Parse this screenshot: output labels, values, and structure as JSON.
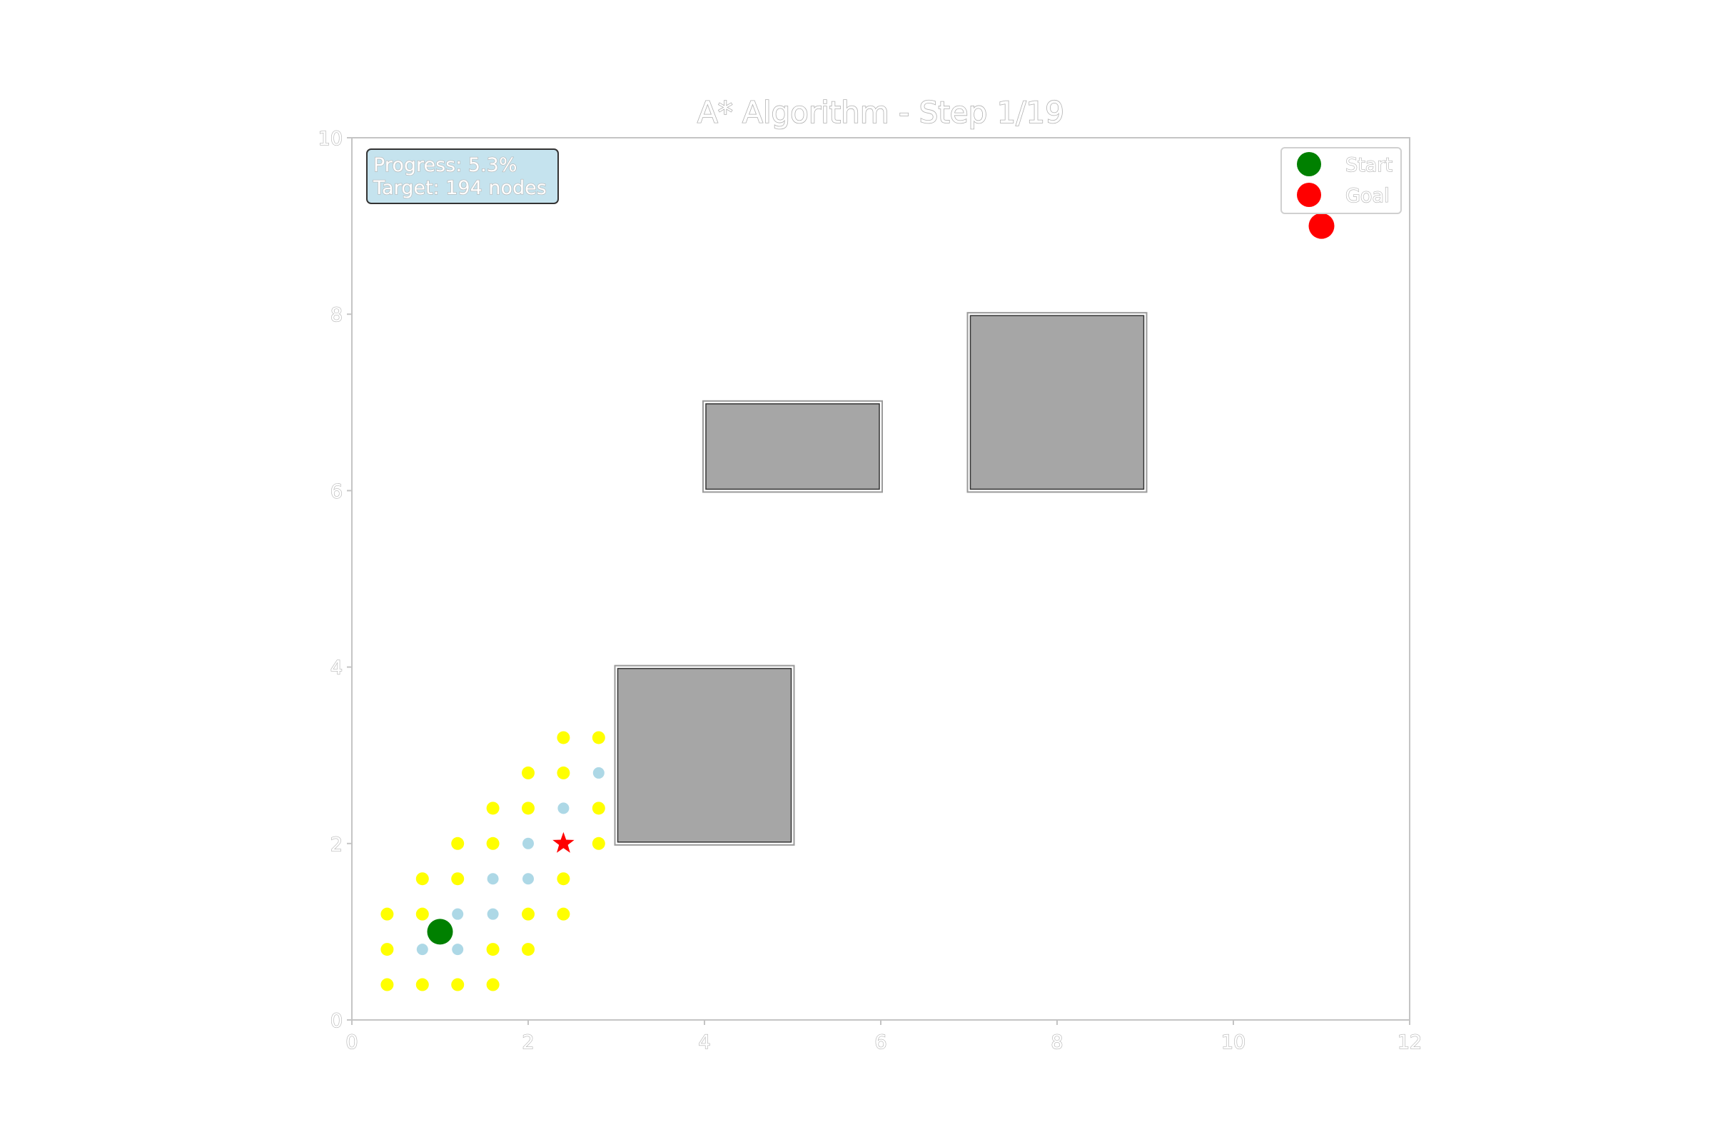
{
  "chart_data": {
    "type": "scatter",
    "title": "A* Algorithm - Step 1/19",
    "xlabel": "",
    "ylabel": "",
    "xlim": [
      0,
      12
    ],
    "ylim": [
      0,
      10
    ],
    "xticks": [
      0,
      2,
      4,
      6,
      8,
      10,
      12
    ],
    "yticks": [
      0,
      2,
      4,
      6,
      8,
      10
    ],
    "grid": false,
    "info_box": {
      "lines": [
        "Progress: 5.3%",
        "Target: 194 nodes"
      ],
      "placement": "top-left",
      "background": "#c5e3ee"
    },
    "legend": {
      "placement": "top-right",
      "entries": [
        {
          "label": "Start",
          "color": "#008000"
        },
        {
          "label": "Goal",
          "color": "#ff0000"
        }
      ]
    },
    "obstacles": [
      {
        "x": 3,
        "y": 2,
        "width": 2,
        "height": 2
      },
      {
        "x": 4,
        "y": 6,
        "width": 2,
        "height": 1
      },
      {
        "x": 7,
        "y": 6,
        "width": 2,
        "height": 2
      }
    ],
    "start": {
      "x": 1.0,
      "y": 1.0,
      "color": "#008000"
    },
    "goal": {
      "x": 11.0,
      "y": 9.0,
      "color": "#ff0000"
    },
    "current": {
      "x": 2.4,
      "y": 2.0,
      "color": "#ff0000"
    },
    "open_set": {
      "color": "#ffff00",
      "points": [
        [
          0.4,
          0.4
        ],
        [
          0.8,
          0.4
        ],
        [
          1.2,
          0.4
        ],
        [
          1.6,
          0.4
        ],
        [
          0.4,
          0.8
        ],
        [
          1.6,
          0.8
        ],
        [
          2.0,
          0.8
        ],
        [
          0.4,
          1.2
        ],
        [
          0.8,
          1.2
        ],
        [
          2.0,
          1.2
        ],
        [
          2.4,
          1.2
        ],
        [
          0.8,
          1.6
        ],
        [
          1.2,
          1.6
        ],
        [
          2.4,
          1.6
        ],
        [
          1.2,
          2.0
        ],
        [
          1.6,
          2.0
        ],
        [
          2.8,
          2.0
        ],
        [
          1.6,
          2.4
        ],
        [
          2.0,
          2.4
        ],
        [
          2.8,
          2.4
        ],
        [
          2.0,
          2.8
        ],
        [
          2.4,
          2.8
        ],
        [
          2.4,
          3.2
        ],
        [
          2.8,
          3.2
        ]
      ]
    },
    "closed_set": {
      "color": "#add8e6",
      "points": [
        [
          0.8,
          0.8
        ],
        [
          1.2,
          0.8
        ],
        [
          1.2,
          1.2
        ],
        [
          1.6,
          1.2
        ],
        [
          1.6,
          1.6
        ],
        [
          2.0,
          1.6
        ],
        [
          2.0,
          2.0
        ],
        [
          2.4,
          2.4
        ],
        [
          2.8,
          2.8
        ]
      ]
    }
  }
}
